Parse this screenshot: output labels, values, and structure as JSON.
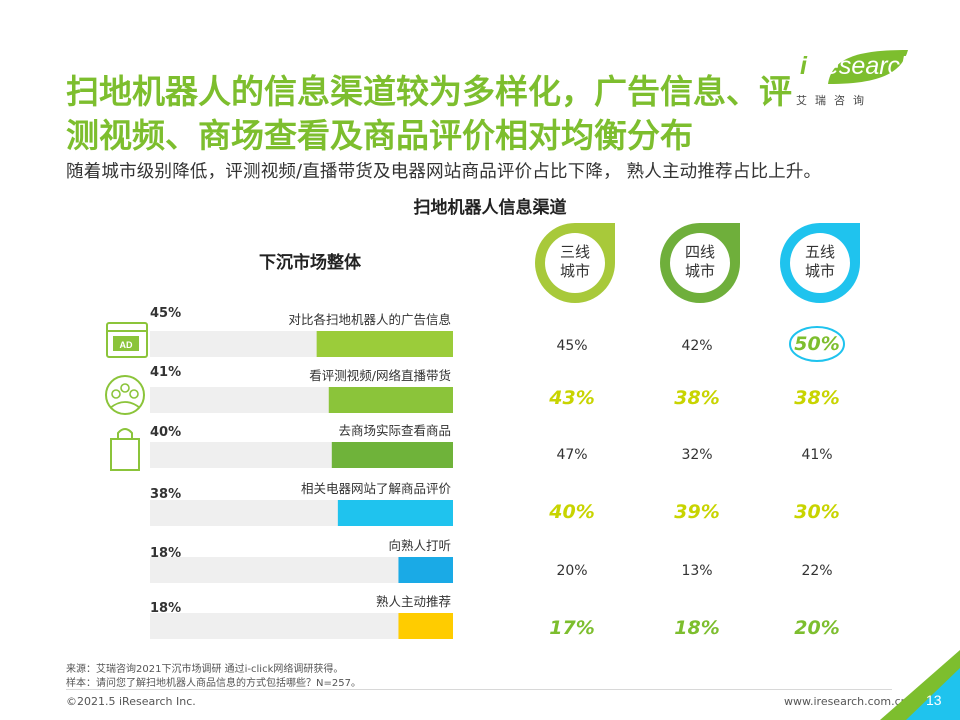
{
  "header": {
    "title": "扫地机器人的信息渠道较为多样化，广告信息、评测视频、商场查看及商品评价相对均衡分布",
    "subtitle": "随着城市级别降低，评测视频/直播带货及电器网站商品评价占比下降， 熟人主动推荐占比上升。"
  },
  "logo": {
    "brand": "Research",
    "prefix": "i",
    "sub": "艾瑞咨询"
  },
  "colors": {
    "title_green": "#7DBE2E",
    "highlight_yellow": "#C8D400",
    "highlight_green": "#7DBE2E",
    "tier3_ring": "#A8C93A",
    "tier4_ring": "#6FAF3B",
    "tier5_ring": "#1FC3EE"
  },
  "chart_data": {
    "type": "bar",
    "title": "扫地机器人信息渠道",
    "left_title": "下沉市场整体",
    "categories": [
      "对比各扫地机器人的广告信息",
      "看评测视频/网络直播带货",
      "去商场实际查看商品",
      "相关电器网站了解商品评价",
      "向熟人打听",
      "熟人主动推荐"
    ],
    "overall": {
      "name": "下沉市场整体",
      "values": [
        45,
        41,
        40,
        38,
        18,
        18
      ],
      "labels": [
        "45%",
        "41%",
        "40%",
        "38%",
        "18%",
        "18%"
      ],
      "colors": [
        "#9BCC3A",
        "#8BC43A",
        "#6FB33A",
        "#1FC3EE",
        "#1AAAE6",
        "#FFCC00"
      ]
    },
    "icons": [
      "ad-icon",
      "people-icon",
      "shopping-bag-icon"
    ],
    "series": [
      {
        "name": "三线城市",
        "line1": "三线",
        "line2": "城市",
        "values": [
          45,
          43,
          47,
          40,
          20,
          17
        ],
        "labels": [
          "45%",
          "43%",
          "47%",
          "40%",
          "20%",
          "17%"
        ]
      },
      {
        "name": "四线城市",
        "line1": "四线",
        "line2": "城市",
        "values": [
          42,
          38,
          32,
          39,
          13,
          18
        ],
        "labels": [
          "42%",
          "38%",
          "32%",
          "39%",
          "13%",
          "18%"
        ]
      },
      {
        "name": "五线城市",
        "line1": "五线",
        "line2": "城市",
        "values": [
          50,
          38,
          41,
          30,
          22,
          20
        ],
        "labels": [
          "50%",
          "38%",
          "41%",
          "30%",
          "22%",
          "20%"
        ]
      }
    ],
    "highlight": [
      [
        "normal",
        "normal",
        "circled"
      ],
      [
        "yellow",
        "yellow",
        "yellow"
      ],
      [
        "normal",
        "normal",
        "normal"
      ],
      [
        "yellow",
        "yellow",
        "yellow"
      ],
      [
        "normal",
        "normal",
        "normal"
      ],
      [
        "green",
        "green",
        "green"
      ]
    ],
    "xlim": [
      0,
      100
    ]
  },
  "footer": {
    "source": "来源：艾瑞咨询2021下沉市场调研 通过i-click网络调研获得。",
    "sample": "样本：请问您了解扫地机器人商品信息的方式包括哪些？N=257。",
    "copyright": "©2021.5 iResearch Inc.",
    "website": "www.iresearch.com.cn",
    "page": "13"
  }
}
